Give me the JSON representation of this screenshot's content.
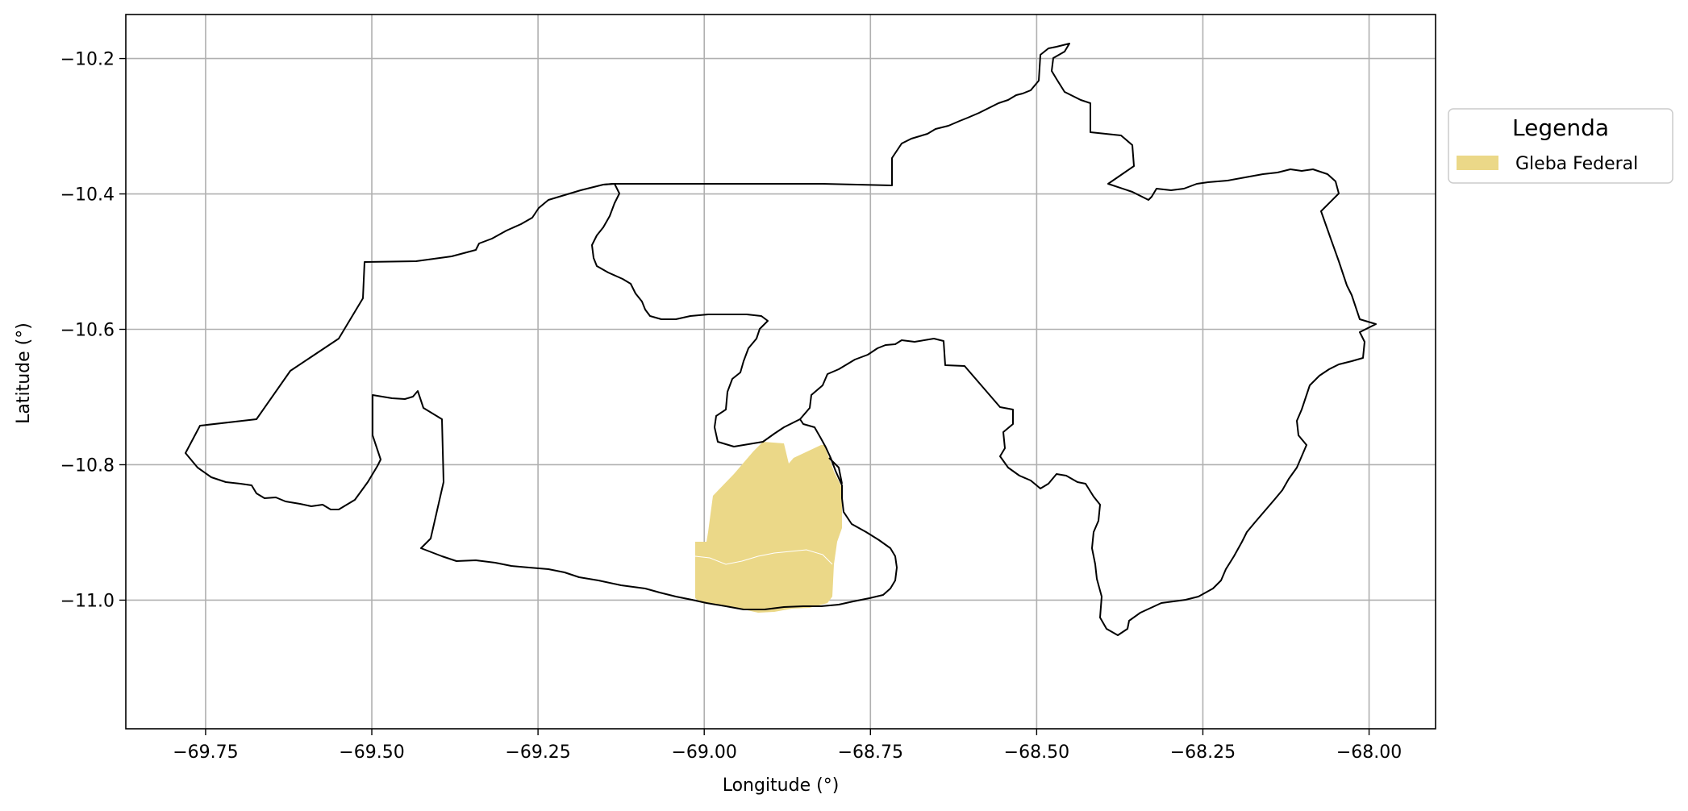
{
  "map": {
    "xlabel": "Longitude (°)",
    "ylabel": "Latitude (°)",
    "x_ticks": [
      "−69.75",
      "−69.50",
      "−69.25",
      "−69.00",
      "−68.75",
      "−68.50",
      "−68.25",
      "−68.00"
    ],
    "y_ticks": [
      "−10.2",
      "−10.4",
      "−10.6",
      "−10.8",
      "−11.0"
    ],
    "x_tick_values": [
      -69.75,
      -69.5,
      -69.25,
      -69.0,
      -68.75,
      -68.5,
      -68.25,
      -68.0
    ],
    "y_tick_values": [
      -10.2,
      -10.4,
      -10.6,
      -10.8,
      -11.0
    ],
    "xlim": [
      -69.87,
      -67.9
    ],
    "ylim": [
      -11.19,
      -10.135
    ],
    "grid": true,
    "legend": {
      "title": "Legenda",
      "items": [
        {
          "label": "Gleba Federal",
          "color": "#ebd888"
        }
      ],
      "placement": "right-outside-top"
    },
    "colors": {
      "outline": "#000000",
      "gleba_fill": "#ebd888",
      "grid": "#b0b0b0"
    }
  }
}
